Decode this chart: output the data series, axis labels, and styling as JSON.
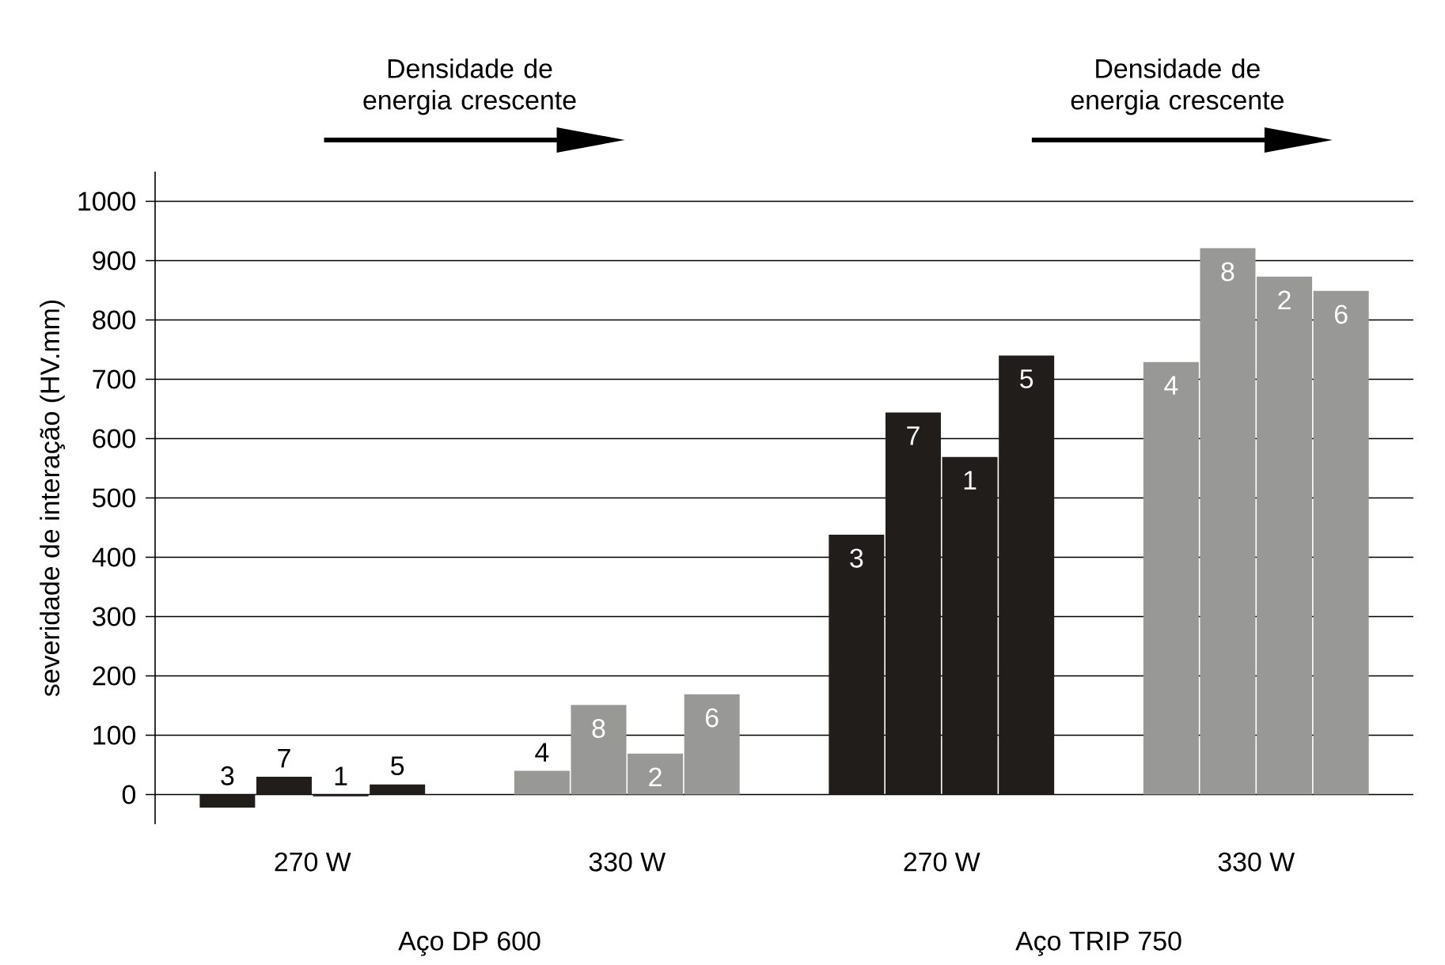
{
  "chart_data": {
    "type": "bar",
    "ylabel": "severidade de interação (HV.mm)",
    "categories": [
      "270 W",
      "330 W",
      "270 W",
      "330 W"
    ],
    "series": [
      {
        "name": "3",
        "color": "#201d1b",
        "values": [
          -22,
          null,
          438,
          null
        ]
      },
      {
        "name": "7",
        "color": "#201d1b",
        "values": [
          30,
          null,
          644,
          null
        ]
      },
      {
        "name": "1",
        "color": "#201d1b",
        "values": [
          -3,
          null,
          569,
          null
        ]
      },
      {
        "name": "5",
        "color": "#201d1b",
        "values": [
          17,
          null,
          740,
          null
        ]
      },
      {
        "name": "4",
        "color": "#989897",
        "values": [
          null,
          40,
          null,
          729
        ]
      },
      {
        "name": "8",
        "color": "#989897",
        "values": [
          null,
          151,
          null,
          921
        ]
      },
      {
        "name": "2",
        "color": "#989897",
        "values": [
          null,
          69,
          null,
          873
        ]
      },
      {
        "name": "6",
        "color": "#989897",
        "values": [
          null,
          169,
          null,
          849
        ]
      }
    ],
    "ylim": [
      -50,
      1050
    ],
    "yticks": [
      0,
      100,
      200,
      300,
      400,
      500,
      600,
      700,
      800,
      900,
      1000
    ],
    "grid": "y",
    "annotations": [
      "Densidade de energia crescente",
      "Densidade de energia crescente",
      "Aço DP 600",
      "Aço TRIP 750"
    ]
  }
}
